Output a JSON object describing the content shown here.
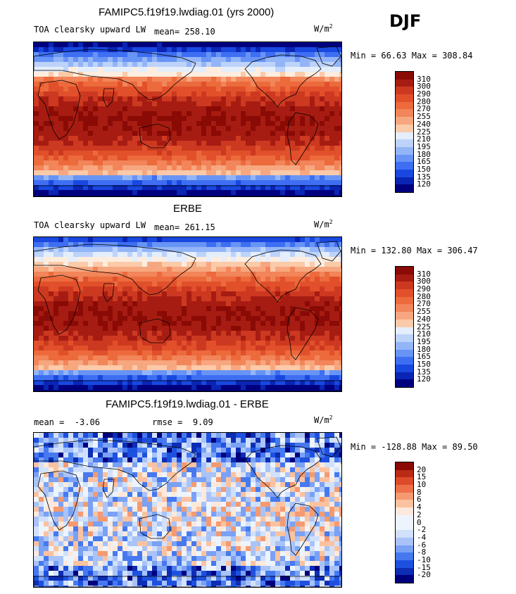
{
  "season": "DJF",
  "colors": {
    "warm_scale": [
      "#00007f",
      "#0a25b4",
      "#1848e0",
      "#3e6ef2",
      "#6894f5",
      "#93b5f7",
      "#bdd3fa",
      "#e4eefc",
      "#fdeddf",
      "#fbcaa9",
      "#f7a77f",
      "#f2855a",
      "#ec6a3c",
      "#e2502b",
      "#cc3920",
      "#a71c12",
      "#8a0a05"
    ],
    "diff_scale": [
      "#00007f",
      "#0d2db4",
      "#1e50e0",
      "#4679f0",
      "#7aa1f4",
      "#a9c3f8",
      "#d1e1fb",
      "#edf4fd",
      "#fde9dc",
      "#fbc2a0",
      "#f59a70",
      "#ee7048",
      "#de4b28",
      "#bb2a15",
      "#8a0a05"
    ],
    "land_outline": "#000000",
    "border": "#000000"
  },
  "chart_data": [
    {
      "type": "heatmap",
      "title": "FAMIPC5.f19f19.lwdiag.01 (yrs 2000)",
      "variable": "TOA clearsky upward LW",
      "units_base": "W/m",
      "units_exp": "2",
      "mean_label": "mean=",
      "mean": "258.10",
      "min_label": "Min =",
      "min": "66.63",
      "max_label": "Max =",
      "max": "308.84",
      "colorbar_levels": [
        "310",
        "300",
        "290",
        "280",
        "270",
        "255",
        "240",
        "225",
        "210",
        "195",
        "180",
        "165",
        "150",
        "135",
        "120"
      ],
      "field": "model"
    },
    {
      "type": "heatmap",
      "title": "ERBE",
      "variable": "TOA clearsky upward LW",
      "units_base": "W/m",
      "units_exp": "2",
      "mean_label": "mean=",
      "mean": "261.15",
      "min_label": "Min =",
      "min": "132.80",
      "max_label": "Max =",
      "max": "306.47",
      "colorbar_levels": [
        "310",
        "300",
        "290",
        "280",
        "270",
        "255",
        "240",
        "225",
        "210",
        "195",
        "180",
        "165",
        "150",
        "135",
        "120"
      ],
      "field": "obs"
    },
    {
      "type": "heatmap",
      "title": "FAMIPC5.f19f19.lwdiag.01 - ERBE",
      "units_base": "W/m",
      "units_exp": "2",
      "mean_label": "mean =",
      "mean": "-3.06",
      "rmse_label": "rmse =",
      "rmse": "9.09",
      "min_label": "Min =",
      "min": "-128.88",
      "max_label": "Max =",
      "max": "89.50",
      "colorbar_levels": [
        "20",
        "15",
        "10",
        "8",
        "6",
        "4",
        "2",
        "0",
        "-2",
        "-4",
        "-6",
        "-8",
        "-10",
        "-15",
        "-20"
      ],
      "field": "diff"
    }
  ]
}
